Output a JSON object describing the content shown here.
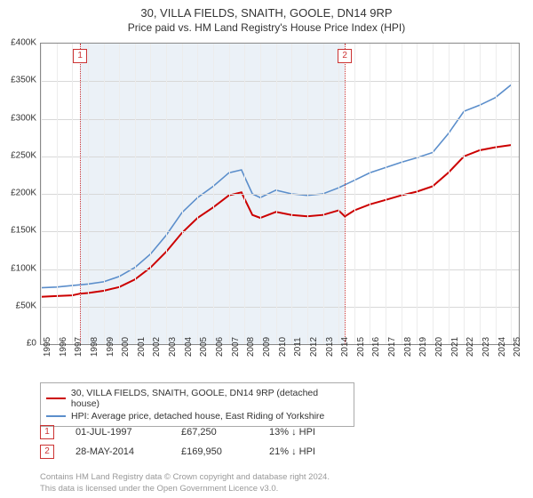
{
  "title_line1": "30, VILLA FIELDS, SNAITH, GOOLE, DN14 9RP",
  "title_line2": "Price paid vs. HM Land Registry's House Price Index (HPI)",
  "chart": {
    "type": "line",
    "background_color": "#ffffff",
    "grid_color_h": "#d8d8d8",
    "grid_color_v": "#ececec",
    "border_color": "#888888",
    "xlim": [
      1995,
      2025.5
    ],
    "ylim": [
      0,
      400000
    ],
    "ytick_step": 50000,
    "ytick_labels": [
      "£0",
      "£50K",
      "£100K",
      "£150K",
      "£200K",
      "£250K",
      "£300K",
      "£350K",
      "£400K"
    ],
    "xticks": [
      1995,
      1996,
      1997,
      1998,
      1999,
      2000,
      2001,
      2002,
      2003,
      2004,
      2005,
      2006,
      2007,
      2008,
      2009,
      2010,
      2011,
      2012,
      2013,
      2014,
      2015,
      2016,
      2017,
      2018,
      2019,
      2020,
      2021,
      2022,
      2023,
      2024,
      2025
    ],
    "shade_band": {
      "start": 1997.5,
      "end": 2014.4,
      "color": "#dbe5f1",
      "opacity": 0.55
    },
    "markers": [
      {
        "num": "1",
        "x": 1997.5
      },
      {
        "num": "2",
        "x": 2014.4
      }
    ],
    "series": [
      {
        "id": "hpi",
        "label": "HPI: Average price, detached house, East Riding of Yorkshire",
        "color": "#5b8ecb",
        "width": 1.6,
        "points": [
          [
            1995,
            75000
          ],
          [
            1996,
            76000
          ],
          [
            1997,
            78000
          ],
          [
            1998,
            80000
          ],
          [
            1999,
            83000
          ],
          [
            2000,
            90000
          ],
          [
            2001,
            102000
          ],
          [
            2002,
            120000
          ],
          [
            2003,
            145000
          ],
          [
            2004,
            175000
          ],
          [
            2005,
            195000
          ],
          [
            2006,
            210000
          ],
          [
            2007,
            228000
          ],
          [
            2007.8,
            232000
          ],
          [
            2008.5,
            200000
          ],
          [
            2009,
            195000
          ],
          [
            2010,
            205000
          ],
          [
            2011,
            200000
          ],
          [
            2012,
            198000
          ],
          [
            2013,
            200000
          ],
          [
            2014,
            208000
          ],
          [
            2015,
            218000
          ],
          [
            2016,
            228000
          ],
          [
            2017,
            235000
          ],
          [
            2018,
            242000
          ],
          [
            2019,
            248000
          ],
          [
            2020,
            255000
          ],
          [
            2021,
            280000
          ],
          [
            2022,
            310000
          ],
          [
            2023,
            318000
          ],
          [
            2024,
            328000
          ],
          [
            2025,
            345000
          ]
        ]
      },
      {
        "id": "property",
        "label": "30, VILLA FIELDS, SNAITH, GOOLE, DN14 9RP (detached house)",
        "color": "#cc0000",
        "width": 2.0,
        "points": [
          [
            1995,
            63000
          ],
          [
            1996,
            64000
          ],
          [
            1997,
            65000
          ],
          [
            1997.5,
            67250
          ],
          [
            1998,
            68000
          ],
          [
            1999,
            71000
          ],
          [
            2000,
            76000
          ],
          [
            2001,
            86000
          ],
          [
            2002,
            102000
          ],
          [
            2003,
            123000
          ],
          [
            2004,
            148000
          ],
          [
            2005,
            168000
          ],
          [
            2006,
            182000
          ],
          [
            2007,
            198000
          ],
          [
            2007.8,
            202000
          ],
          [
            2008.5,
            172000
          ],
          [
            2009,
            168000
          ],
          [
            2010,
            176000
          ],
          [
            2011,
            172000
          ],
          [
            2012,
            170000
          ],
          [
            2013,
            172000
          ],
          [
            2014,
            178000
          ],
          [
            2014.4,
            169950
          ],
          [
            2015,
            178000
          ],
          [
            2016,
            186000
          ],
          [
            2017,
            192000
          ],
          [
            2018,
            198000
          ],
          [
            2019,
            203000
          ],
          [
            2020,
            210000
          ],
          [
            2021,
            228000
          ],
          [
            2022,
            250000
          ],
          [
            2023,
            258000
          ],
          [
            2024,
            262000
          ],
          [
            2025,
            265000
          ]
        ]
      }
    ]
  },
  "legend": {
    "items": [
      {
        "color": "#cc0000",
        "label": "30, VILLA FIELDS, SNAITH, GOOLE, DN14 9RP (detached house)"
      },
      {
        "color": "#5b8ecb",
        "label": "HPI: Average price, detached house, East Riding of Yorkshire"
      }
    ]
  },
  "sales": [
    {
      "num": "1",
      "date": "01-JUL-1997",
      "price": "£67,250",
      "pct": "13%",
      "arrow": "↓",
      "vs": "HPI"
    },
    {
      "num": "2",
      "date": "28-MAY-2014",
      "price": "£169,950",
      "pct": "21%",
      "arrow": "↓",
      "vs": "HPI"
    }
  ],
  "footer_line1": "Contains HM Land Registry data © Crown copyright and database right 2024.",
  "footer_line2": "This data is licensed under the Open Government Licence v3.0."
}
